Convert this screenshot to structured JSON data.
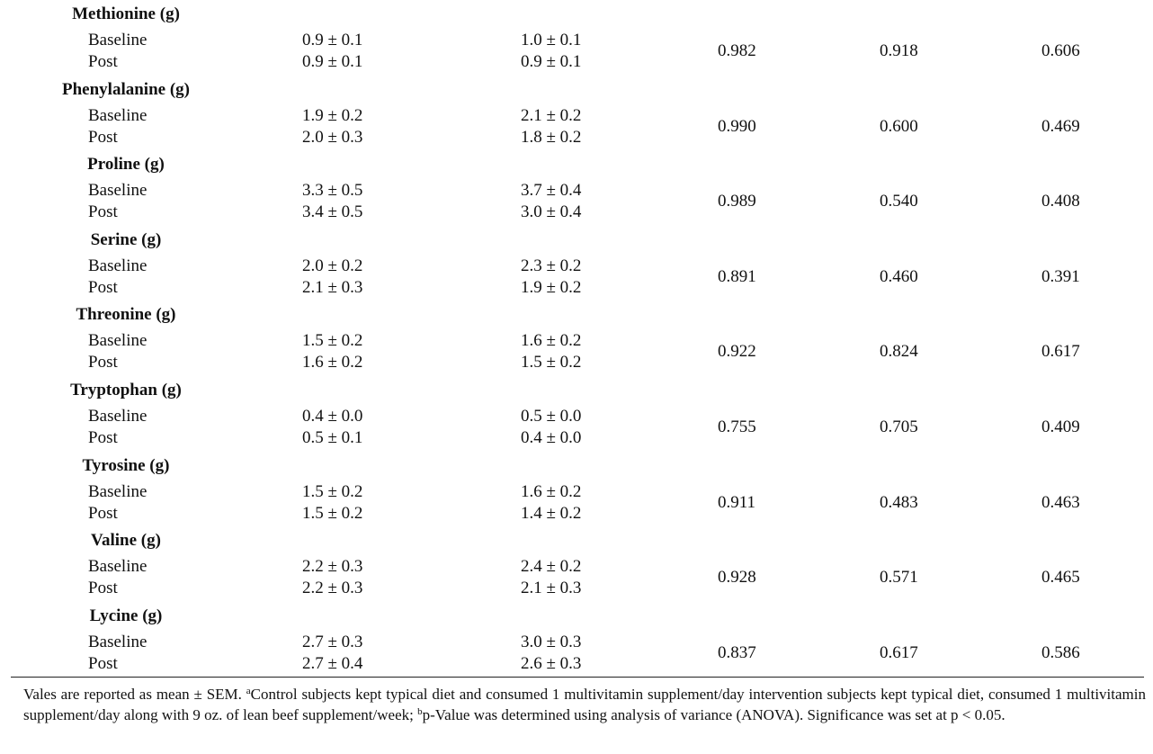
{
  "rows": [
    {
      "name": "Methionine (g)",
      "baseline_label": "Baseline",
      "post_label": "Post",
      "control_baseline": "0.9 ± 0.1",
      "control_post": "0.9 ± 0.1",
      "intervention_baseline": "1.0 ± 0.1",
      "intervention_post": "0.9 ± 0.1",
      "p1": "0.982",
      "p2": "0.918",
      "p3": "0.606"
    },
    {
      "name": "Phenylalanine (g)",
      "baseline_label": "Baseline",
      "post_label": "Post",
      "control_baseline": "1.9 ± 0.2",
      "control_post": "2.0 ± 0.3",
      "intervention_baseline": "2.1 ± 0.2",
      "intervention_post": "1.8 ± 0.2",
      "p1": "0.990",
      "p2": "0.600",
      "p3": "0.469"
    },
    {
      "name": "Proline (g)",
      "baseline_label": "Baseline",
      "post_label": "Post",
      "control_baseline": "3.3 ± 0.5",
      "control_post": "3.4 ± 0.5",
      "intervention_baseline": "3.7 ± 0.4",
      "intervention_post": "3.0 ± 0.4",
      "p1": "0.989",
      "p2": "0.540",
      "p3": "0.408"
    },
    {
      "name": "Serine (g)",
      "baseline_label": "Baseline",
      "post_label": "Post",
      "control_baseline": "2.0 ± 0.2",
      "control_post": "2.1 ± 0.3",
      "intervention_baseline": "2.3 ± 0.2",
      "intervention_post": "1.9 ± 0.2",
      "p1": "0.891",
      "p2": "0.460",
      "p3": "0.391"
    },
    {
      "name": "Threonine (g)",
      "baseline_label": "Baseline",
      "post_label": "Post",
      "control_baseline": "1.5 ± 0.2",
      "control_post": "1.6 ± 0.2",
      "intervention_baseline": "1.6 ± 0.2",
      "intervention_post": "1.5 ± 0.2",
      "p1": "0.922",
      "p2": "0.824",
      "p3": "0.617"
    },
    {
      "name": "Tryptophan (g)",
      "baseline_label": "Baseline",
      "post_label": "Post",
      "control_baseline": "0.4 ± 0.0",
      "control_post": "0.5 ± 0.1",
      "intervention_baseline": "0.5 ± 0.0",
      "intervention_post": "0.4 ± 0.0",
      "p1": "0.755",
      "p2": "0.705",
      "p3": "0.409"
    },
    {
      "name": "Tyrosine (g)",
      "baseline_label": "Baseline",
      "post_label": "Post",
      "control_baseline": "1.5 ± 0.2",
      "control_post": "1.5 ± 0.2",
      "intervention_baseline": "1.6 ± 0.2",
      "intervention_post": "1.4 ± 0.2",
      "p1": "0.911",
      "p2": "0.483",
      "p3": "0.463"
    },
    {
      "name": "Valine (g)",
      "baseline_label": "Baseline",
      "post_label": "Post",
      "control_baseline": "2.2 ± 0.3",
      "control_post": "2.2 ± 0.3",
      "intervention_baseline": "2.4 ± 0.2",
      "intervention_post": "2.1 ± 0.3",
      "p1": "0.928",
      "p2": "0.571",
      "p3": "0.465"
    },
    {
      "name": "Lycine (g)",
      "baseline_label": "Baseline",
      "post_label": "Post",
      "control_baseline": "2.7 ± 0.3",
      "control_post": "2.7 ± 0.4",
      "intervention_baseline": "3.0 ± 0.3",
      "intervention_post": "2.6 ± 0.3",
      "p1": "0.837",
      "p2": "0.617",
      "p3": "0.586"
    }
  ],
  "footnote": {
    "part1": "Vales are reported as mean ± SEM. ",
    "sup_a": "a",
    "part2": "Control subjects kept typical diet and consumed 1 multivitamin supplement/day intervention subjects kept typical diet, consumed 1 multivitamin supplement/day along with 9 oz. of lean beef supplement/week; ",
    "sup_b": "b",
    "part3": "p-Value was determined using analysis of variance (ANOVA). Significance was set at p < 0.05."
  }
}
